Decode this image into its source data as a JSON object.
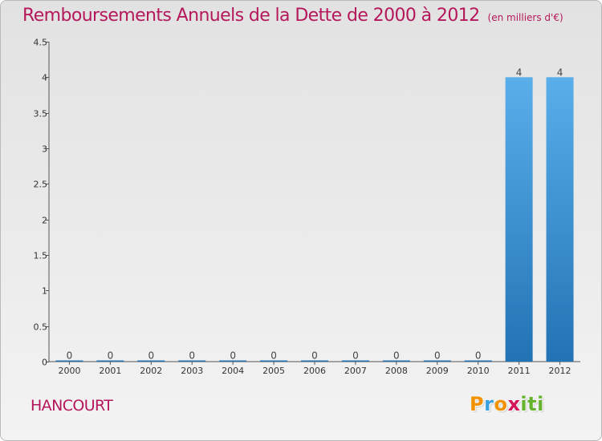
{
  "header": {
    "title": "Remboursements Annuels de la Dette de 2000 à 2012",
    "unit": "(en milliers d'€)"
  },
  "footer": {
    "place": "HANCOURT",
    "logo_letters": [
      "P",
      "r",
      "o",
      "x",
      "i",
      "t",
      "i"
    ],
    "logo_colors": [
      "#f39200",
      "#3aa0e0",
      "#f39200",
      "#d4145a",
      "#66b32e",
      "#66b32e",
      "#66b32e"
    ]
  },
  "colors": {
    "title": "#b5175b",
    "bar_top": "#5aaeea",
    "bar_bottom": "#2273b5",
    "axis": "#555555"
  },
  "chart_data": {
    "type": "bar",
    "title": "Remboursements Annuels de la Dette de 2000 à 2012",
    "subtitle": "(en milliers d'€)",
    "categories": [
      "2000",
      "2001",
      "2002",
      "2003",
      "2004",
      "2005",
      "2006",
      "2007",
      "2008",
      "2009",
      "2010",
      "2011",
      "2012"
    ],
    "values": [
      0,
      0,
      0,
      0,
      0,
      0,
      0,
      0,
      0,
      0,
      0,
      4,
      4
    ],
    "data_labels": [
      "0",
      "0",
      "0",
      "0",
      "0",
      "0",
      "0",
      "0",
      "0",
      "0",
      "0",
      "4",
      "4"
    ],
    "ylim": [
      0,
      4.5
    ],
    "yticks": [
      0,
      0.5,
      1,
      1.5,
      2,
      2.5,
      3,
      3.5,
      4,
      4.5
    ],
    "ytick_labels": [
      "0",
      "0.5",
      "1",
      "1.5",
      "2",
      "2.5",
      "3",
      "3.5",
      "4",
      "4.5"
    ],
    "grid": false,
    "legend": "none"
  }
}
